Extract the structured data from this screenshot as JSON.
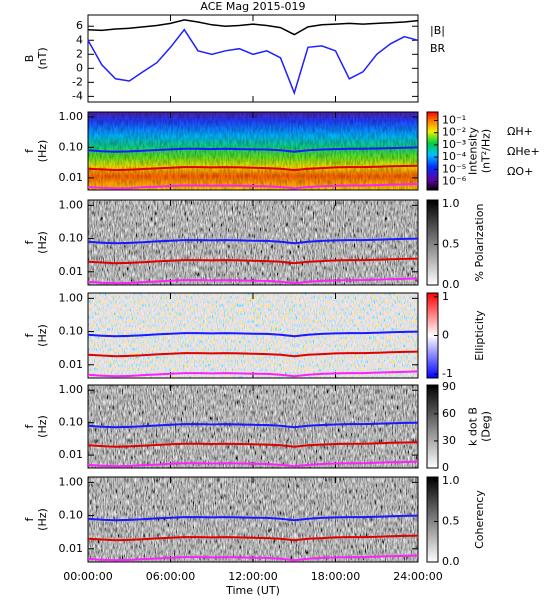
{
  "chart_data": [
    {
      "type": "line",
      "title": "ACE Mag 2015-019",
      "ylabel": [
        "B",
        "(nT)"
      ],
      "x": [
        0,
        1,
        2,
        3,
        4,
        5,
        6,
        7,
        8,
        9,
        10,
        11,
        12,
        13,
        14,
        15,
        16,
        17,
        18,
        19,
        20,
        21,
        22,
        23,
        24
      ],
      "xlim": [
        0,
        24
      ],
      "ylim": [
        -4.8,
        7.6
      ],
      "yticks": [
        -4,
        -2,
        0,
        2,
        4,
        6
      ],
      "series": [
        {
          "name": "|B|",
          "color": "#000000",
          "values": [
            5.5,
            5.4,
            5.6,
            5.7,
            5.9,
            6.1,
            6.4,
            6.9,
            6.6,
            6.2,
            6.0,
            6.1,
            6.3,
            6.1,
            5.8,
            4.8,
            5.9,
            6.2,
            6.3,
            6.4,
            6.3,
            6.4,
            6.5,
            6.6,
            6.8
          ]
        },
        {
          "name": "BR",
          "color": "#2020ff",
          "values": [
            4.0,
            0.5,
            -1.5,
            -1.8,
            -0.5,
            0.8,
            3.0,
            5.5,
            2.5,
            2.0,
            2.5,
            2.8,
            2.0,
            2.5,
            1.5,
            -3.5,
            3.0,
            3.2,
            2.5,
            -1.5,
            -0.5,
            2.0,
            3.5,
            4.5,
            4.0
          ]
        }
      ]
    },
    {
      "type": "spectrogram",
      "ylabel": [
        "f",
        "(Hz)"
      ],
      "log_y": true,
      "x": [
        0,
        1,
        2,
        3,
        4,
        5,
        6,
        7,
        8,
        9,
        10,
        11,
        12,
        13,
        14,
        15,
        16,
        17,
        18,
        19,
        20,
        21,
        22,
        23,
        24
      ],
      "xlim": [
        0,
        24
      ],
      "ylim": [
        0.004,
        1.45
      ],
      "yticks": [
        {
          "value": 1,
          "label": "1.00"
        },
        {
          "value": 0.1,
          "label": "0.10"
        },
        {
          "value": 0.01,
          "label": "0.01"
        }
      ],
      "series": [
        {
          "name": "ΩH+",
          "color": "#1a1aff",
          "values": [
            0.08,
            0.075,
            0.072,
            0.074,
            0.078,
            0.082,
            0.086,
            0.09,
            0.09,
            0.088,
            0.09,
            0.088,
            0.086,
            0.085,
            0.08,
            0.072,
            0.08,
            0.085,
            0.088,
            0.09,
            0.09,
            0.092,
            0.095,
            0.098,
            0.1
          ]
        },
        {
          "name": "ΩHe+",
          "color": "#e00000",
          "values": [
            0.02,
            0.019,
            0.018,
            0.0185,
            0.0195,
            0.0205,
            0.0215,
            0.0225,
            0.0225,
            0.022,
            0.0225,
            0.022,
            0.0215,
            0.021,
            0.02,
            0.018,
            0.02,
            0.021,
            0.022,
            0.0225,
            0.0225,
            0.023,
            0.024,
            0.0245,
            0.025
          ]
        },
        {
          "name": "ΩO+",
          "color": "#ff20ff",
          "values": [
            0.005,
            0.0047,
            0.0045,
            0.0046,
            0.0049,
            0.0051,
            0.0054,
            0.0056,
            0.0056,
            0.0055,
            0.0056,
            0.0055,
            0.0054,
            0.0053,
            0.005,
            0.0045,
            0.005,
            0.0053,
            0.0055,
            0.0056,
            0.0056,
            0.0058,
            0.006,
            0.0061,
            0.0063
          ]
        }
      ],
      "colorbar": {
        "label": [
          "Intensity",
          "(nT²/Hz)"
        ],
        "colormap": "rainbow",
        "log": true,
        "lim": [
          2e-07,
          0.5
        ],
        "ticks": [
          {
            "value": 0.1,
            "label": "10⁻¹"
          },
          {
            "value": 0.01,
            "label": "10⁻²"
          },
          {
            "value": 0.001,
            "label": "10⁻³"
          },
          {
            "value": 0.0001,
            "label": "10⁻⁴"
          },
          {
            "value": 1e-05,
            "label": "10⁻⁵"
          },
          {
            "value": 1e-06,
            "label": "10⁻⁶"
          }
        ]
      }
    },
    {
      "type": "spectrogram",
      "ylabel": [
        "f",
        "(Hz)"
      ],
      "log_y": true,
      "x": [
        0,
        1,
        2,
        3,
        4,
        5,
        6,
        7,
        8,
        9,
        10,
        11,
        12,
        13,
        14,
        15,
        16,
        17,
        18,
        19,
        20,
        21,
        22,
        23,
        24
      ],
      "xlim": [
        0,
        24
      ],
      "ylim": [
        0.004,
        1.45
      ],
      "yticks": [
        {
          "value": 1,
          "label": "1.00"
        },
        {
          "value": 0.1,
          "label": "0.10"
        },
        {
          "value": 0.01,
          "label": "0.01"
        }
      ],
      "series": [
        {
          "color": "#1a1aff",
          "values": [
            0.08,
            0.075,
            0.072,
            0.074,
            0.078,
            0.082,
            0.086,
            0.09,
            0.09,
            0.088,
            0.09,
            0.088,
            0.086,
            0.085,
            0.08,
            0.072,
            0.08,
            0.085,
            0.088,
            0.09,
            0.09,
            0.092,
            0.095,
            0.098,
            0.1
          ]
        },
        {
          "color": "#e00000",
          "values": [
            0.02,
            0.019,
            0.018,
            0.0185,
            0.0195,
            0.0205,
            0.0215,
            0.0225,
            0.0225,
            0.022,
            0.0225,
            0.022,
            0.0215,
            0.021,
            0.02,
            0.018,
            0.02,
            0.021,
            0.022,
            0.0225,
            0.0225,
            0.023,
            0.024,
            0.0245,
            0.025
          ]
        },
        {
          "color": "#ff20ff",
          "values": [
            0.005,
            0.0047,
            0.0045,
            0.0046,
            0.0049,
            0.0051,
            0.0054,
            0.0056,
            0.0056,
            0.0055,
            0.0056,
            0.0055,
            0.0054,
            0.0053,
            0.005,
            0.0045,
            0.005,
            0.0053,
            0.0055,
            0.0056,
            0.0056,
            0.0058,
            0.006,
            0.0061,
            0.0063
          ]
        }
      ],
      "colorbar": {
        "label": [
          "% Polarization"
        ],
        "colormap": "gray",
        "log": false,
        "lim": [
          0,
          1.05
        ],
        "ticks": [
          {
            "value": 1,
            "label": "1.0"
          },
          {
            "value": 0.5,
            "label": "0.5"
          },
          {
            "value": 0,
            "label": "0.0"
          }
        ]
      }
    },
    {
      "type": "spectrogram",
      "ylabel": [
        "f",
        "(Hz)"
      ],
      "log_y": true,
      "x": [
        0,
        1,
        2,
        3,
        4,
        5,
        6,
        7,
        8,
        9,
        10,
        11,
        12,
        13,
        14,
        15,
        16,
        17,
        18,
        19,
        20,
        21,
        22,
        23,
        24
      ],
      "xlim": [
        0,
        24
      ],
      "ylim": [
        0.004,
        1.45
      ],
      "yticks": [
        {
          "value": 1,
          "label": "1.00"
        },
        {
          "value": 0.1,
          "label": "0.10"
        },
        {
          "value": 0.01,
          "label": "0.01"
        }
      ],
      "series": [
        {
          "color": "#1a1aff",
          "values": [
            0.08,
            0.075,
            0.072,
            0.074,
            0.078,
            0.082,
            0.086,
            0.09,
            0.09,
            0.088,
            0.09,
            0.088,
            0.086,
            0.085,
            0.08,
            0.072,
            0.08,
            0.085,
            0.088,
            0.09,
            0.09,
            0.092,
            0.095,
            0.098,
            0.1
          ]
        },
        {
          "color": "#e00000",
          "values": [
            0.02,
            0.019,
            0.018,
            0.0185,
            0.0195,
            0.0205,
            0.0215,
            0.0225,
            0.0225,
            0.022,
            0.0225,
            0.022,
            0.0215,
            0.021,
            0.02,
            0.018,
            0.02,
            0.021,
            0.022,
            0.0225,
            0.0225,
            0.023,
            0.024,
            0.0245,
            0.025
          ]
        },
        {
          "color": "#ff20ff",
          "values": [
            0.005,
            0.0047,
            0.0045,
            0.0046,
            0.0049,
            0.0051,
            0.0054,
            0.0056,
            0.0056,
            0.0055,
            0.0056,
            0.0055,
            0.0054,
            0.0053,
            0.005,
            0.0045,
            0.005,
            0.0053,
            0.0055,
            0.0056,
            0.0056,
            0.0058,
            0.006,
            0.0061,
            0.0063
          ]
        }
      ],
      "colorbar": {
        "label": [
          "Ellipticity"
        ],
        "colormap": "bwr",
        "log": false,
        "lim": [
          -1.1,
          1.1
        ],
        "ticks": [
          1,
          0,
          -1
        ]
      }
    },
    {
      "type": "spectrogram",
      "ylabel": [
        "f",
        "(Hz)"
      ],
      "log_y": true,
      "x": [
        0,
        1,
        2,
        3,
        4,
        5,
        6,
        7,
        8,
        9,
        10,
        11,
        12,
        13,
        14,
        15,
        16,
        17,
        18,
        19,
        20,
        21,
        22,
        23,
        24
      ],
      "xlim": [
        0,
        24
      ],
      "ylim": [
        0.004,
        1.45
      ],
      "yticks": [
        {
          "value": 1,
          "label": "1.00"
        },
        {
          "value": 0.1,
          "label": "0.10"
        },
        {
          "value": 0.01,
          "label": "0.01"
        }
      ],
      "series": [
        {
          "color": "#1a1aff",
          "values": [
            0.08,
            0.075,
            0.072,
            0.074,
            0.078,
            0.082,
            0.086,
            0.09,
            0.09,
            0.088,
            0.09,
            0.088,
            0.086,
            0.085,
            0.08,
            0.072,
            0.08,
            0.085,
            0.088,
            0.09,
            0.09,
            0.092,
            0.095,
            0.098,
            0.1
          ]
        },
        {
          "color": "#e00000",
          "values": [
            0.02,
            0.019,
            0.018,
            0.0185,
            0.0195,
            0.0205,
            0.0215,
            0.0225,
            0.0225,
            0.022,
            0.0225,
            0.022,
            0.0215,
            0.021,
            0.02,
            0.018,
            0.02,
            0.021,
            0.022,
            0.0225,
            0.0225,
            0.023,
            0.024,
            0.0245,
            0.025
          ]
        },
        {
          "color": "#ff20ff",
          "values": [
            0.005,
            0.0047,
            0.0045,
            0.0046,
            0.0049,
            0.0051,
            0.0054,
            0.0056,
            0.0056,
            0.0055,
            0.0056,
            0.0055,
            0.0054,
            0.0053,
            0.005,
            0.0045,
            0.005,
            0.0053,
            0.0055,
            0.0056,
            0.0056,
            0.0058,
            0.006,
            0.0061,
            0.0063
          ]
        }
      ],
      "colorbar": {
        "label": [
          "k dot B",
          "(Deg)"
        ],
        "colormap": "gray",
        "log": false,
        "lim": [
          0,
          92
        ],
        "ticks": [
          90,
          60,
          30,
          0
        ]
      }
    },
    {
      "type": "spectrogram",
      "ylabel": [
        "f",
        "(Hz)"
      ],
      "log_y": true,
      "x": [
        0,
        1,
        2,
        3,
        4,
        5,
        6,
        7,
        8,
        9,
        10,
        11,
        12,
        13,
        14,
        15,
        16,
        17,
        18,
        19,
        20,
        21,
        22,
        23,
        24
      ],
      "xlim": [
        0,
        24
      ],
      "ylim": [
        0.004,
        1.45
      ],
      "yticks": [
        {
          "value": 1,
          "label": "1.00"
        },
        {
          "value": 0.1,
          "label": "0.10"
        },
        {
          "value": 0.01,
          "label": "0.01"
        }
      ],
      "xlabel": "Time (UT)",
      "xticks": [
        {
          "value": 0,
          "label": "00:00:00"
        },
        {
          "value": 6,
          "label": "06:00:00"
        },
        {
          "value": 12,
          "label": "12:00:00"
        },
        {
          "value": 18,
          "label": "18:00:00"
        },
        {
          "value": 24,
          "label": "24:00:00"
        }
      ],
      "series": [
        {
          "color": "#1a1aff",
          "values": [
            0.08,
            0.075,
            0.072,
            0.074,
            0.078,
            0.082,
            0.086,
            0.09,
            0.09,
            0.088,
            0.09,
            0.088,
            0.086,
            0.085,
            0.08,
            0.072,
            0.08,
            0.085,
            0.088,
            0.09,
            0.09,
            0.092,
            0.095,
            0.098,
            0.1
          ]
        },
        {
          "color": "#e00000",
          "values": [
            0.02,
            0.019,
            0.018,
            0.0185,
            0.0195,
            0.0205,
            0.0215,
            0.0225,
            0.0225,
            0.022,
            0.0225,
            0.022,
            0.0215,
            0.021,
            0.02,
            0.018,
            0.02,
            0.021,
            0.022,
            0.0225,
            0.0225,
            0.023,
            0.024,
            0.0245,
            0.025
          ]
        },
        {
          "color": "#ff20ff",
          "values": [
            0.005,
            0.0047,
            0.0045,
            0.0046,
            0.0049,
            0.0051,
            0.0054,
            0.0056,
            0.0056,
            0.0055,
            0.0056,
            0.0055,
            0.0054,
            0.0053,
            0.005,
            0.0045,
            0.005,
            0.0053,
            0.0055,
            0.0056,
            0.0056,
            0.0058,
            0.006,
            0.0061,
            0.0063
          ]
        }
      ],
      "colorbar": {
        "label": [
          "Coherency"
        ],
        "colormap": "gray",
        "log": false,
        "lim": [
          0,
          1.05
        ],
        "ticks": [
          {
            "value": 1,
            "label": "1.0"
          },
          {
            "value": 0.5,
            "label": "0.5"
          },
          {
            "value": 0,
            "label": "0.0"
          }
        ]
      }
    }
  ]
}
